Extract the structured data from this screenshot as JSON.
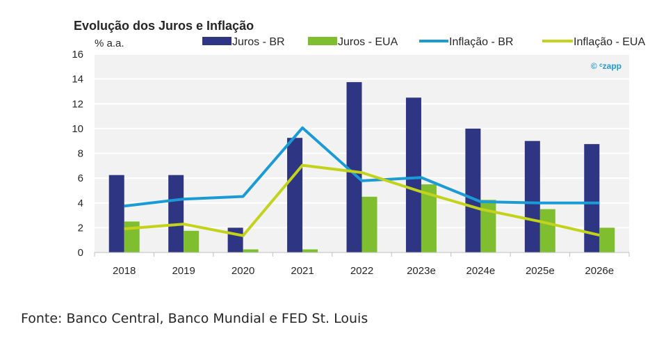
{
  "chart_data": {
    "type": "bar",
    "title": "Evolução dos Juros e Inflação",
    "ylabel": "% a.a.",
    "xlabel": "",
    "ylim": [
      0,
      16
    ],
    "yticks": [
      0,
      2,
      4,
      6,
      8,
      10,
      12,
      14,
      16
    ],
    "grid": true,
    "legend_position": "top",
    "categories": [
      "2018",
      "2019",
      "2020",
      "2021",
      "2022",
      "2023e",
      "2024e",
      "2025e",
      "2026e"
    ],
    "series": [
      {
        "name": "Juros - BR",
        "kind": "bar",
        "color": "#2e3582",
        "values": [
          6.25,
          6.25,
          2.0,
          9.25,
          13.75,
          12.5,
          10.0,
          9.0,
          8.75
        ]
      },
      {
        "name": "Juros - EUA",
        "kind": "bar",
        "color": "#7fbf2f",
        "values": [
          2.5,
          1.75,
          0.25,
          0.25,
          4.5,
          5.5,
          4.25,
          3.5,
          2.0
        ]
      },
      {
        "name": "Inflação - BR",
        "kind": "line",
        "color": "#1a9ad6",
        "values": [
          3.75,
          4.31,
          4.52,
          10.06,
          5.79,
          6.05,
          4.1,
          4.0,
          4.0
        ]
      },
      {
        "name": "Inflação - EUA",
        "kind": "line",
        "color": "#c3d21b",
        "values": [
          1.91,
          2.29,
          1.36,
          7.04,
          6.45,
          4.9,
          3.5,
          2.5,
          1.4
        ]
      }
    ],
    "watermark": "© ᶜzapp",
    "source": "Fonte: Banco Central, Banco Mundial e FED St. Louis"
  }
}
